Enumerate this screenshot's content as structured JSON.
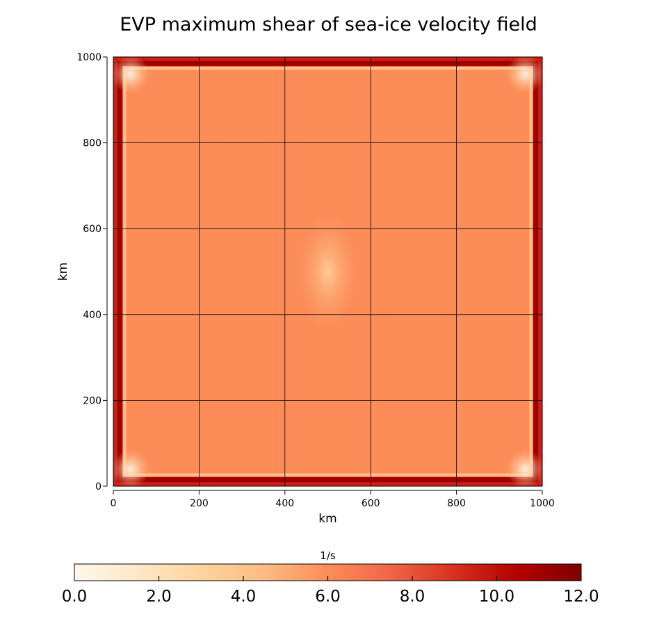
{
  "chart_data": {
    "type": "heatmap",
    "title": "EVP maximum shear of sea-ice velocity field",
    "xlabel": "km",
    "ylabel": "km",
    "xlim": [
      0,
      1000
    ],
    "ylim": [
      0,
      1000
    ],
    "x_ticks": [
      0,
      200,
      400,
      600,
      800,
      1000
    ],
    "y_ticks": [
      0,
      200,
      400,
      600,
      800,
      1000
    ],
    "grid": true,
    "grid_step_km": 200,
    "colormap": "OrRd",
    "colorbar": {
      "label": "1/s",
      "orientation": "horizontal",
      "placement": "bottom",
      "range": [
        0.0,
        12.0
      ],
      "ticks": [
        "0.0",
        "2.0",
        "4.0",
        "6.0",
        "8.0",
        "10.0",
        "12.0"
      ],
      "colors": [
        "#fff7ec",
        "#fee8c8",
        "#fdd49e",
        "#fdbb84",
        "#fc8d59",
        "#ef6548",
        "#d7301f",
        "#b30000",
        "#7f0000"
      ]
    },
    "field_summary": {
      "interior_value": 6.0,
      "center_minimum": {
        "x": 500,
        "y": 500,
        "value": 3.5
      },
      "corner_minimum_value": 0.5,
      "near_boundary_band_value": 4.2,
      "boundary_maximum_value": 11.0,
      "edge_value": 9.5
    }
  }
}
